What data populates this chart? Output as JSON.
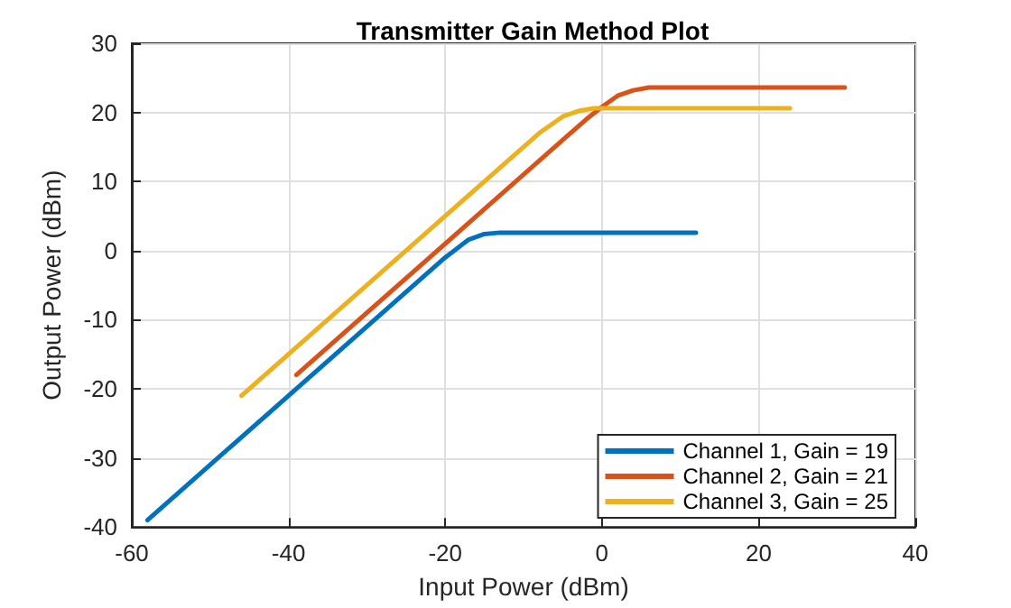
{
  "chart_data": {
    "type": "line",
    "title": "Transmitter Gain Method Plot",
    "xlabel": "Input Power (dBm)",
    "ylabel": "Output Power (dBm)",
    "xlim": [
      -60,
      40
    ],
    "xticks": [
      -60,
      -40,
      -20,
      0,
      20,
      40
    ],
    "ylim": [
      -40,
      30
    ],
    "yticks": [
      -40,
      -30,
      -20,
      -10,
      0,
      10,
      20,
      30
    ],
    "grid": true,
    "legend": "bottom right",
    "marker": "none",
    "line_style": "solid",
    "series": [
      {
        "name": "Channel 1, Gain = 19",
        "color": "#0072bd",
        "x": [
          -58,
          -20,
          -17,
          -15,
          -13,
          12
        ],
        "values": [
          -39,
          -1,
          1.6,
          2.4,
          2.6,
          2.6
        ]
      },
      {
        "name": "Channel 2, Gain = 21",
        "color": "#d95319",
        "x": [
          -39,
          -5,
          -2,
          0,
          2,
          4,
          6,
          31
        ],
        "values": [
          -18,
          16,
          19,
          20.8,
          22.4,
          23.2,
          23.6,
          23.6
        ]
      },
      {
        "name": "Channel 3, Gain = 25",
        "color": "#edb120",
        "x": [
          -46,
          -8,
          -5,
          -3,
          -1,
          24
        ],
        "values": [
          -21,
          17,
          19.4,
          20.2,
          20.6,
          20.6
        ]
      }
    ]
  }
}
